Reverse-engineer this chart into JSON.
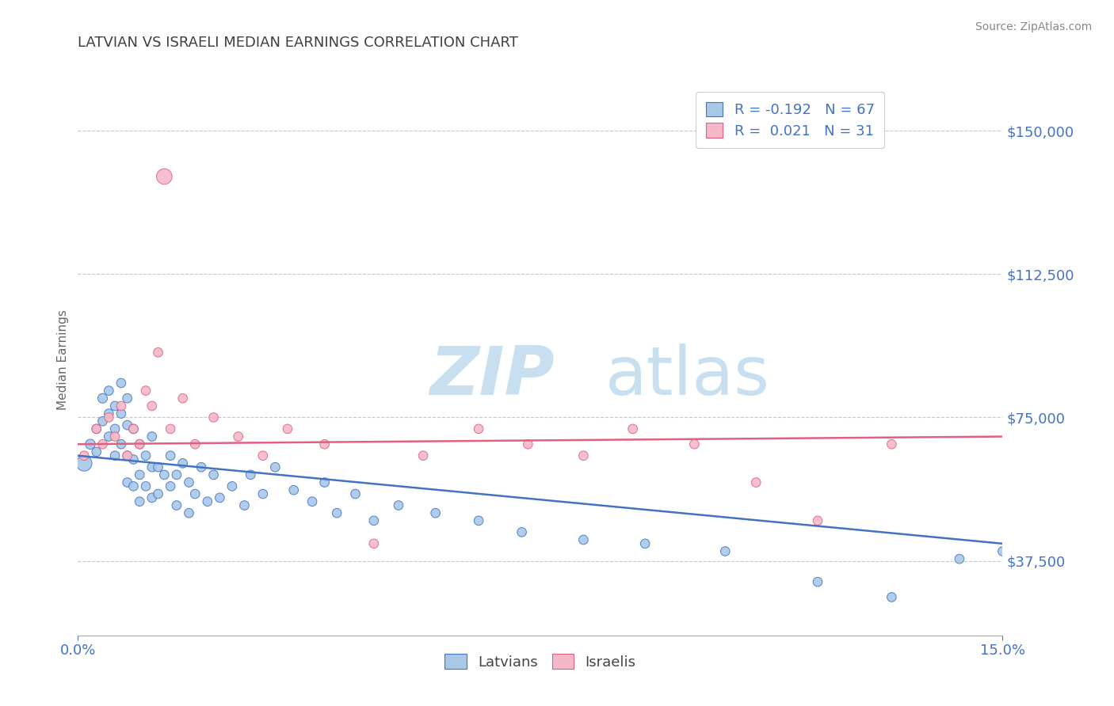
{
  "title": "LATVIAN VS ISRAELI MEDIAN EARNINGS CORRELATION CHART",
  "source": "Source: ZipAtlas.com",
  "ylabel": "Median Earnings",
  "xmin": 0.0,
  "xmax": 0.15,
  "ymin": 18000,
  "ymax": 162000,
  "yticks": [
    37500,
    75000,
    112500,
    150000
  ],
  "ytick_labels": [
    "$37,500",
    "$75,000",
    "$112,500",
    "$150,000"
  ],
  "xticks": [
    0.0,
    0.15
  ],
  "xtick_labels": [
    "0.0%",
    "15.0%"
  ],
  "latvian_R": -0.192,
  "latvian_N": 67,
  "israeli_R": 0.021,
  "israeli_N": 31,
  "latvian_color": "#a8c8e8",
  "latvian_line_color": "#4472c4",
  "israeli_color": "#f5b8c8",
  "israeli_line_color": "#e06080",
  "background_color": "#ffffff",
  "grid_color": "#c8c8c8",
  "title_color": "#404040",
  "axis_color": "#4472c4",
  "latvians_x": [
    0.001,
    0.002,
    0.003,
    0.003,
    0.004,
    0.004,
    0.005,
    0.005,
    0.005,
    0.006,
    0.006,
    0.006,
    0.007,
    0.007,
    0.007,
    0.008,
    0.008,
    0.008,
    0.008,
    0.009,
    0.009,
    0.009,
    0.01,
    0.01,
    0.01,
    0.011,
    0.011,
    0.012,
    0.012,
    0.012,
    0.013,
    0.013,
    0.014,
    0.015,
    0.015,
    0.016,
    0.016,
    0.017,
    0.018,
    0.018,
    0.019,
    0.02,
    0.021,
    0.022,
    0.023,
    0.025,
    0.027,
    0.028,
    0.03,
    0.032,
    0.035,
    0.038,
    0.04,
    0.042,
    0.045,
    0.048,
    0.052,
    0.058,
    0.065,
    0.072,
    0.082,
    0.092,
    0.105,
    0.12,
    0.132,
    0.143,
    0.15
  ],
  "latvians_y": [
    63000,
    68000,
    72000,
    66000,
    80000,
    74000,
    82000,
    76000,
    70000,
    78000,
    72000,
    65000,
    84000,
    76000,
    68000,
    80000,
    73000,
    65000,
    58000,
    72000,
    64000,
    57000,
    68000,
    60000,
    53000,
    65000,
    57000,
    70000,
    62000,
    54000,
    62000,
    55000,
    60000,
    65000,
    57000,
    60000,
    52000,
    63000,
    58000,
    50000,
    55000,
    62000,
    53000,
    60000,
    54000,
    57000,
    52000,
    60000,
    55000,
    62000,
    56000,
    53000,
    58000,
    50000,
    55000,
    48000,
    52000,
    50000,
    48000,
    45000,
    43000,
    42000,
    40000,
    32000,
    28000,
    38000,
    40000
  ],
  "israelis_x": [
    0.001,
    0.003,
    0.004,
    0.005,
    0.006,
    0.007,
    0.008,
    0.009,
    0.01,
    0.011,
    0.012,
    0.013,
    0.014,
    0.015,
    0.017,
    0.019,
    0.022,
    0.026,
    0.03,
    0.034,
    0.04,
    0.048,
    0.056,
    0.065,
    0.073,
    0.082,
    0.09,
    0.1,
    0.11,
    0.12,
    0.132
  ],
  "israelis_y": [
    65000,
    72000,
    68000,
    75000,
    70000,
    78000,
    65000,
    72000,
    68000,
    82000,
    78000,
    92000,
    138000,
    72000,
    80000,
    68000,
    75000,
    70000,
    65000,
    72000,
    68000,
    42000,
    65000,
    72000,
    68000,
    65000,
    72000,
    68000,
    58000,
    48000,
    68000
  ],
  "latvian_sizes": [
    200,
    80,
    70,
    70,
    75,
    70,
    70,
    70,
    70,
    70,
    70,
    70,
    70,
    70,
    70,
    70,
    70,
    70,
    70,
    70,
    70,
    70,
    70,
    70,
    70,
    70,
    70,
    70,
    70,
    70,
    70,
    70,
    70,
    70,
    70,
    70,
    70,
    70,
    70,
    70,
    70,
    70,
    70,
    70,
    70,
    70,
    70,
    70,
    70,
    70,
    70,
    70,
    70,
    70,
    70,
    70,
    70,
    70,
    70,
    70,
    70,
    70,
    70,
    70,
    70,
    70,
    70
  ],
  "israeli_sizes": [
    70,
    70,
    70,
    70,
    70,
    70,
    70,
    70,
    70,
    70,
    70,
    70,
    200,
    70,
    70,
    70,
    70,
    70,
    70,
    70,
    70,
    70,
    70,
    70,
    70,
    70,
    70,
    70,
    70,
    70,
    70
  ]
}
